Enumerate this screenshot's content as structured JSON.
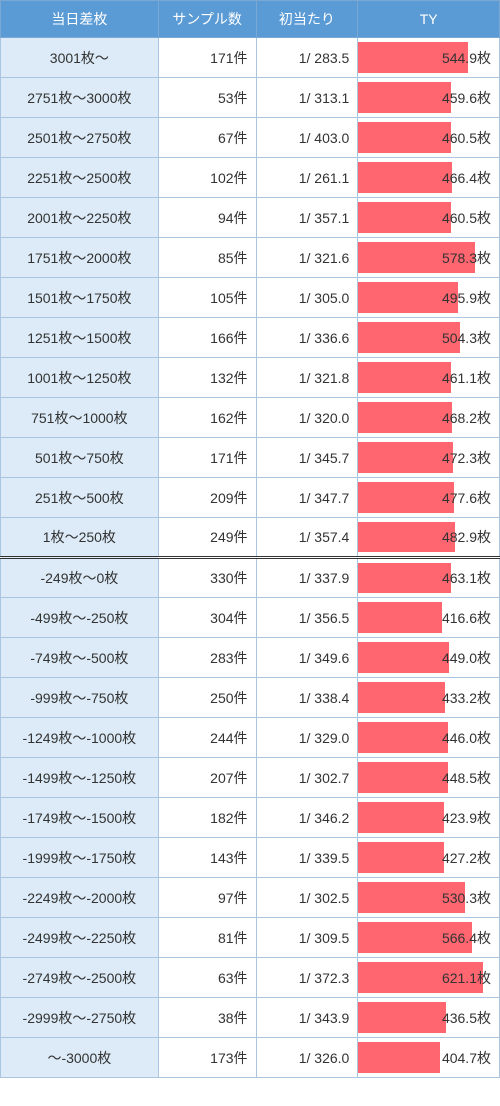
{
  "headers": {
    "range": "当日差枚",
    "samples": "サンプル数",
    "hit": "初当たり",
    "ty": "TY"
  },
  "colors": {
    "header_bg": "#5b9bd5",
    "header_text": "#ffffff",
    "range_bg": "#dcebf7",
    "border": "#a9c5e0",
    "bar": "#ff6670",
    "text": "#333333"
  },
  "ty_max": 700,
  "rows_top": [
    {
      "range": "3001枚〜",
      "samples": "171件",
      "hit": "1/ 283.5",
      "ty": "544.9枚",
      "ty_val": 544.9
    },
    {
      "range": "2751枚〜3000枚",
      "samples": "53件",
      "hit": "1/ 313.1",
      "ty": "459.6枚",
      "ty_val": 459.6
    },
    {
      "range": "2501枚〜2750枚",
      "samples": "67件",
      "hit": "1/ 403.0",
      "ty": "460.5枚",
      "ty_val": 460.5
    },
    {
      "range": "2251枚〜2500枚",
      "samples": "102件",
      "hit": "1/ 261.1",
      "ty": "466.4枚",
      "ty_val": 466.4
    },
    {
      "range": "2001枚〜2250枚",
      "samples": "94件",
      "hit": "1/ 357.1",
      "ty": "460.5枚",
      "ty_val": 460.5
    },
    {
      "range": "1751枚〜2000枚",
      "samples": "85件",
      "hit": "1/ 321.6",
      "ty": "578.3枚",
      "ty_val": 578.3
    },
    {
      "range": "1501枚〜1750枚",
      "samples": "105件",
      "hit": "1/ 305.0",
      "ty": "495.9枚",
      "ty_val": 495.9
    },
    {
      "range": "1251枚〜1500枚",
      "samples": "166件",
      "hit": "1/ 336.6",
      "ty": "504.3枚",
      "ty_val": 504.3
    },
    {
      "range": "1001枚〜1250枚",
      "samples": "132件",
      "hit": "1/ 321.8",
      "ty": "461.1枚",
      "ty_val": 461.1
    },
    {
      "range": "751枚〜1000枚",
      "samples": "162件",
      "hit": "1/ 320.0",
      "ty": "468.2枚",
      "ty_val": 468.2
    },
    {
      "range": "501枚〜750枚",
      "samples": "171件",
      "hit": "1/ 345.7",
      "ty": "472.3枚",
      "ty_val": 472.3
    },
    {
      "range": "251枚〜500枚",
      "samples": "209件",
      "hit": "1/ 347.7",
      "ty": "477.6枚",
      "ty_val": 477.6
    },
    {
      "range": "1枚〜250枚",
      "samples": "249件",
      "hit": "1/ 357.4",
      "ty": "482.9枚",
      "ty_val": 482.9
    }
  ],
  "rows_bottom": [
    {
      "range": "-249枚〜0枚",
      "samples": "330件",
      "hit": "1/ 337.9",
      "ty": "463.1枚",
      "ty_val": 463.1
    },
    {
      "range": "-499枚〜-250枚",
      "samples": "304件",
      "hit": "1/ 356.5",
      "ty": "416.6枚",
      "ty_val": 416.6
    },
    {
      "range": "-749枚〜-500枚",
      "samples": "283件",
      "hit": "1/ 349.6",
      "ty": "449.0枚",
      "ty_val": 449.0
    },
    {
      "range": "-999枚〜-750枚",
      "samples": "250件",
      "hit": "1/ 338.4",
      "ty": "433.2枚",
      "ty_val": 433.2
    },
    {
      "range": "-1249枚〜-1000枚",
      "samples": "244件",
      "hit": "1/ 329.0",
      "ty": "446.0枚",
      "ty_val": 446.0
    },
    {
      "range": "-1499枚〜-1250枚",
      "samples": "207件",
      "hit": "1/ 302.7",
      "ty": "448.5枚",
      "ty_val": 448.5
    },
    {
      "range": "-1749枚〜-1500枚",
      "samples": "182件",
      "hit": "1/ 346.2",
      "ty": "423.9枚",
      "ty_val": 423.9
    },
    {
      "range": "-1999枚〜-1750枚",
      "samples": "143件",
      "hit": "1/ 339.5",
      "ty": "427.2枚",
      "ty_val": 427.2
    },
    {
      "range": "-2249枚〜-2000枚",
      "samples": "97件",
      "hit": "1/ 302.5",
      "ty": "530.3枚",
      "ty_val": 530.3
    },
    {
      "range": "-2499枚〜-2250枚",
      "samples": "81件",
      "hit": "1/ 309.5",
      "ty": "566.4枚",
      "ty_val": 566.4
    },
    {
      "range": "-2749枚〜-2500枚",
      "samples": "63件",
      "hit": "1/ 372.3",
      "ty": "621.1枚",
      "ty_val": 621.1
    },
    {
      "range": "-2999枚〜-2750枚",
      "samples": "38件",
      "hit": "1/ 343.9",
      "ty": "436.5枚",
      "ty_val": 436.5
    },
    {
      "range": "〜-3000枚",
      "samples": "173件",
      "hit": "1/ 326.0",
      "ty": "404.7枚",
      "ty_val": 404.7
    }
  ]
}
